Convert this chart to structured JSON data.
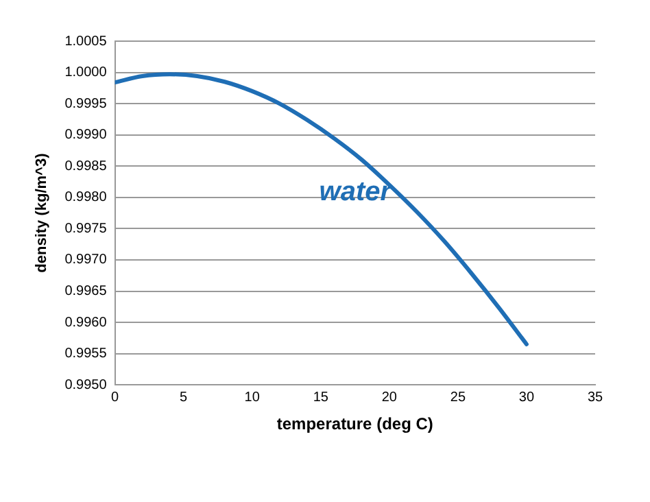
{
  "chart_data": {
    "type": "line",
    "xlabel": "temperature (deg C)",
    "ylabel": "density (kg/m^3)",
    "x": [
      0,
      2,
      4,
      6,
      8,
      10,
      12,
      14,
      16,
      18,
      20,
      22,
      24,
      26,
      28,
      30
    ],
    "series": [
      {
        "color": "#1f6eb5",
        "values": [
          0.99984,
          0.99994,
          0.99997,
          0.99994,
          0.99985,
          0.9997,
          0.9995,
          0.99924,
          0.99894,
          0.9986,
          0.9982,
          0.99777,
          0.9973,
          0.99678,
          0.99623,
          0.99565
        ]
      }
    ],
    "xlim": [
      0,
      35
    ],
    "xticks": [
      0,
      5,
      10,
      15,
      20,
      25,
      30,
      35
    ],
    "ylim": [
      0.995,
      1.0005
    ],
    "yticks": [
      {
        "value": 0.995,
        "label": "0.9950"
      },
      {
        "value": 0.9955,
        "label": "0.9955"
      },
      {
        "value": 0.996,
        "label": "0.9960"
      },
      {
        "value": 0.9965,
        "label": "0.9965"
      },
      {
        "value": 0.997,
        "label": "0.9970"
      },
      {
        "value": 0.9975,
        "label": "0.9975"
      },
      {
        "value": 0.998,
        "label": "0.9980"
      },
      {
        "value": 0.9985,
        "label": "0.9985"
      },
      {
        "value": 0.999,
        "label": "0.9990"
      },
      {
        "value": 0.9995,
        "label": "0.9995"
      },
      {
        "value": 1,
        "label": "1.0000"
      },
      {
        "value": 1.0005,
        "label": "1.0005"
      }
    ],
    "grid": "y",
    "marker": "none",
    "line_style": "solid",
    "legend": false,
    "annotations": [
      "water"
    ]
  }
}
